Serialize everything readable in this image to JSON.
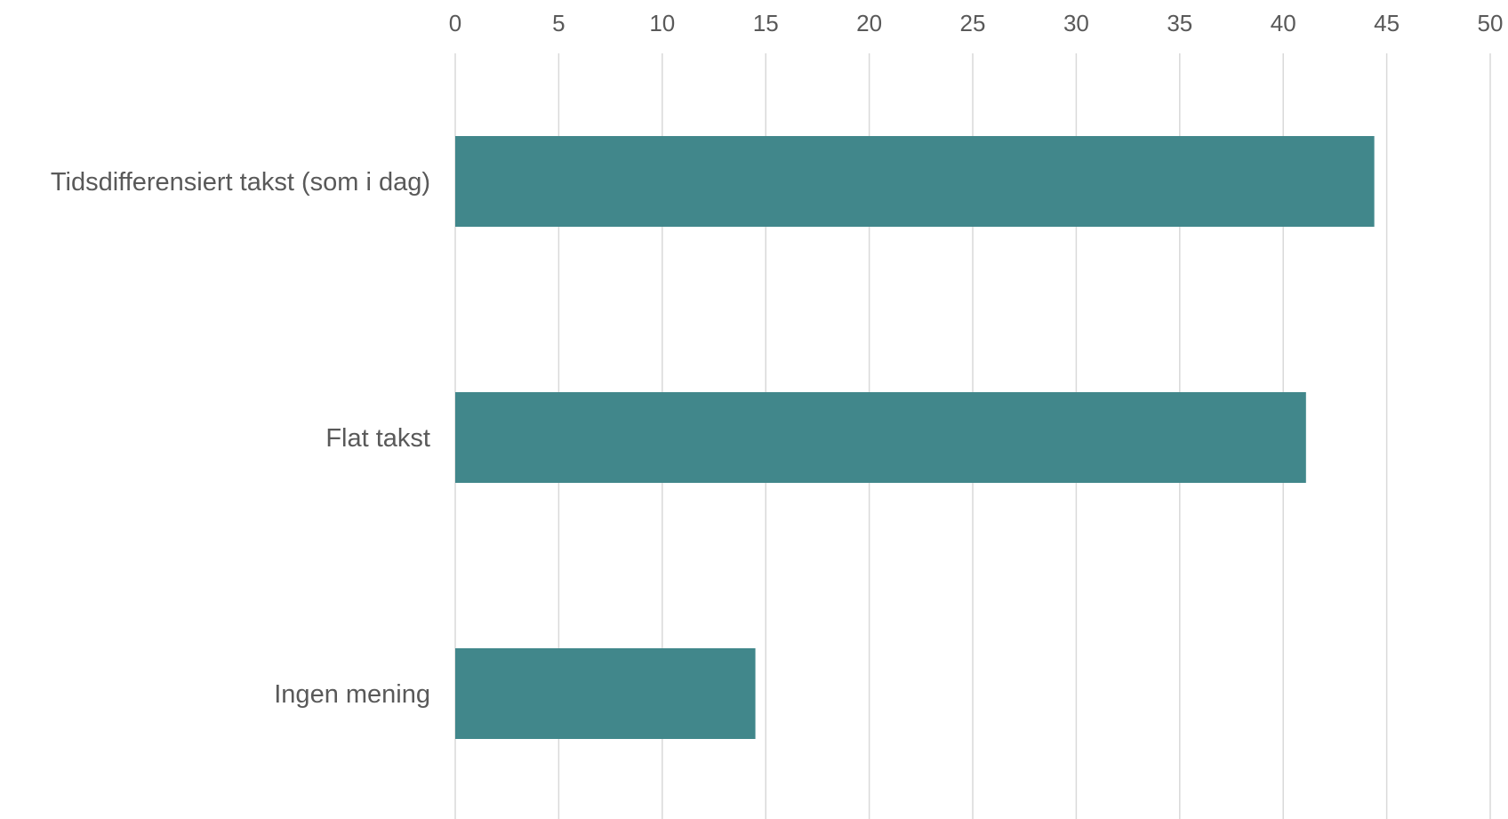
{
  "chart_data": {
    "type": "bar",
    "orientation": "horizontal",
    "categories": [
      "Tidsdifferensiert takst (som i dag)",
      "Flat takst",
      "Ingen mening"
    ],
    "values": [
      44.4,
      41.1,
      14.5
    ],
    "title": "",
    "xlabel": "",
    "ylabel": "",
    "xlim": [
      0,
      50
    ],
    "xticks": [
      "0",
      "5",
      "10",
      "15",
      "20",
      "25",
      "30",
      "35",
      "40",
      "45",
      "50"
    ],
    "x_axis_position": "top",
    "grid": true,
    "legend": "none",
    "bar_color": "#41878B"
  }
}
